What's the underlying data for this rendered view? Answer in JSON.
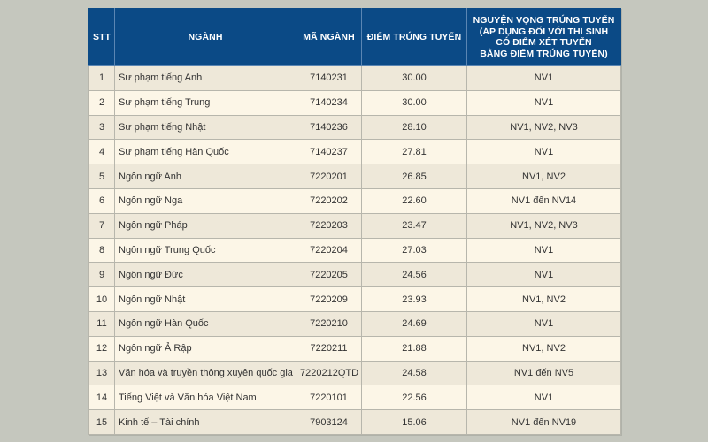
{
  "table": {
    "headers": {
      "stt": "STT",
      "nganh": "NGÀNH",
      "ma_nganh": "MÃ NGÀNH",
      "diem": "ĐIỂM TRÚNG TUYỂN",
      "nguyen_vong": [
        "NGUYỆN VỌNG TRÚNG TUYỂN",
        "(ÁP DỤNG ĐỐI VỚI THÍ SINH",
        "CÓ ĐIỂM XÉT TUYỂN",
        "BẰNG ĐIỂM TRÚNG TUYỂN)"
      ]
    },
    "rows": [
      {
        "stt": "1",
        "nganh": "Sư phạm tiếng Anh",
        "ma": "7140231",
        "diem": "30.00",
        "nv": "NV1"
      },
      {
        "stt": "2",
        "nganh": "Sư phạm tiếng Trung",
        "ma": "7140234",
        "diem": "30.00",
        "nv": "NV1"
      },
      {
        "stt": "3",
        "nganh": "Sư phạm tiếng Nhật",
        "ma": "7140236",
        "diem": "28.10",
        "nv": "NV1, NV2, NV3"
      },
      {
        "stt": "4",
        "nganh": "Sư phạm tiếng Hàn Quốc",
        "ma": "7140237",
        "diem": "27.81",
        "nv": "NV1"
      },
      {
        "stt": "5",
        "nganh": "Ngôn ngữ Anh",
        "ma": "7220201",
        "diem": "26.85",
        "nv": "NV1, NV2"
      },
      {
        "stt": "6",
        "nganh": "Ngôn ngữ Nga",
        "ma": "7220202",
        "diem": "22.60",
        "nv": "NV1 đến NV14"
      },
      {
        "stt": "7",
        "nganh": "Ngôn ngữ Pháp",
        "ma": "7220203",
        "diem": "23.47",
        "nv": "NV1, NV2, NV3"
      },
      {
        "stt": "8",
        "nganh": "Ngôn ngữ Trung Quốc",
        "ma": "7220204",
        "diem": "27.03",
        "nv": "NV1"
      },
      {
        "stt": "9",
        "nganh": "Ngôn ngữ Đức",
        "ma": "7220205",
        "diem": "24.56",
        "nv": "NV1"
      },
      {
        "stt": "10",
        "nganh": "Ngôn ngữ Nhật",
        "ma": "7220209",
        "diem": "23.93",
        "nv": "NV1, NV2"
      },
      {
        "stt": "11",
        "nganh": "Ngôn ngữ Hàn Quốc",
        "ma": "7220210",
        "diem": "24.69",
        "nv": "NV1"
      },
      {
        "stt": "12",
        "nganh": "Ngôn ngữ Ả Rập",
        "ma": "7220211",
        "diem": "21.88",
        "nv": "NV1, NV2"
      },
      {
        "stt": "13",
        "nganh": "Văn hóa và truyền thông xuyên quốc gia",
        "ma": "7220212QTD",
        "diem": "24.58",
        "nv": "NV1 đến NV5"
      },
      {
        "stt": "14",
        "nganh": "Tiếng Việt và Văn hóa Việt Nam",
        "ma": "7220101",
        "diem": "22.56",
        "nv": "NV1"
      },
      {
        "stt": "15",
        "nganh": "Kinh tế – Tài chính",
        "ma": "7903124",
        "diem": "15.06",
        "nv": "NV1 đến NV19"
      }
    ]
  },
  "colors": {
    "background": "#c5c7be",
    "header_bg": "#0b4a86",
    "header_text": "#ffffff",
    "row_odd": "#eee8d9",
    "row_even": "#fcf6e7",
    "border": "#b7b6ac",
    "text": "#333333"
  }
}
